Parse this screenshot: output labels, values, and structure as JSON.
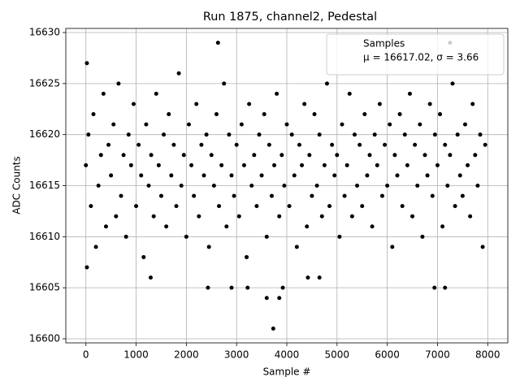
{
  "chart_data": {
    "type": "scatter",
    "title": "Run 1875, channel2, Pedestal",
    "x_label": "Sample #",
    "y_label": "ADC Counts",
    "xlim": [
      -400,
      8400
    ],
    "xticks": [
      0,
      1000,
      2000,
      3000,
      4000,
      5000,
      6000,
      7000,
      8000
    ],
    "ylim": [
      16599.6,
      16630.4
    ],
    "yticks": [
      16600,
      16605,
      16610,
      16615,
      16620,
      16625,
      16630
    ],
    "grid": true,
    "legend": "upper right",
    "legend_entries": [
      "Samples",
      "μ = 16617.02, σ = 3.66"
    ],
    "series": [
      {
        "name": "Samples",
        "color": "#000000",
        "x": [
          0,
          50,
          100,
          150,
          200,
          250,
          300,
          350,
          400,
          450,
          500,
          550,
          600,
          650,
          700,
          750,
          800,
          850,
          900,
          950,
          1000,
          1050,
          1100,
          1150,
          1200,
          1250,
          1300,
          1350,
          1400,
          1450,
          1500,
          1550,
          1600,
          1650,
          1700,
          1750,
          1800,
          1850,
          1900,
          1950,
          2000,
          2050,
          2100,
          2150,
          2200,
          2250,
          2300,
          2350,
          2400,
          2450,
          2500,
          2550,
          2600,
          2650,
          2700,
          2750,
          2800,
          2850,
          2900,
          2950,
          3000,
          3050,
          3100,
          3150,
          3200,
          3250,
          3300,
          3350,
          3400,
          3450,
          3500,
          3550,
          3600,
          3650,
          3700,
          3750,
          3800,
          3850,
          3900,
          3950,
          4000,
          4050,
          4100,
          4150,
          4200,
          4250,
          4300,
          4350,
          4400,
          4450,
          4500,
          4550,
          4600,
          4650,
          4700,
          4750,
          4800,
          4850,
          4900,
          4950,
          5000,
          5050,
          5100,
          5150,
          5200,
          5250,
          5300,
          5350,
          5400,
          5450,
          5500,
          5550,
          5600,
          5650,
          5700,
          5750,
          5800,
          5850,
          5900,
          5950,
          6000,
          6050,
          6100,
          6150,
          6200,
          6250,
          6300,
          6350,
          6400,
          6450,
          6500,
          6550,
          6600,
          6650,
          6700,
          6750,
          6800,
          6850,
          6900,
          6950,
          7000,
          7050,
          7100,
          7150,
          7200,
          7250,
          7300,
          7350,
          7400,
          7450,
          7500,
          7550,
          7600,
          7650,
          7700,
          7750,
          7800,
          7850,
          7900,
          7950,
          3730,
          3600,
          3850,
          3920,
          2630,
          7250,
          1290,
          2430,
          2900,
          3220,
          6940,
          7150,
          4420,
          4650,
          20,
          20
        ],
        "values": [
          16617,
          16620,
          16613,
          16622,
          16609,
          16615,
          16618,
          16624,
          16611,
          16619,
          16616,
          16621,
          16612,
          16625,
          16614,
          16618,
          16610,
          16620,
          16617,
          16623,
          16613,
          16619,
          16616,
          16608,
          16621,
          16615,
          16618,
          16612,
          16624,
          16617,
          16614,
          16620,
          16611,
          16622,
          16616,
          16619,
          16613,
          16626,
          16615,
          16618,
          16610,
          16621,
          16617,
          16614,
          16623,
          16612,
          16619,
          16616,
          16620,
          16609,
          16618,
          16615,
          16622,
          16613,
          16617,
          16625,
          16611,
          16620,
          16616,
          16614,
          16619,
          16612,
          16621,
          16617,
          16608,
          16623,
          16615,
          16618,
          16613,
          16620,
          16616,
          16622,
          16610,
          16619,
          16614,
          16617,
          16624,
          16612,
          16618,
          16615,
          16621,
          16613,
          16620,
          16616,
          16609,
          16619,
          16617,
          16623,
          16611,
          16618,
          16614,
          16622,
          16615,
          16620,
          16612,
          16617,
          16625,
          16613,
          16619,
          16616,
          16618,
          16610,
          16621,
          16614,
          16617,
          16624,
          16612,
          16620,
          16615,
          16619,
          16613,
          16622,
          16616,
          16618,
          16611,
          16620,
          16617,
          16623,
          16614,
          16619,
          16615,
          16621,
          16609,
          16618,
          16616,
          16622,
          16613,
          16620,
          16617,
          16624,
          16612,
          16619,
          16615,
          16621,
          16610,
          16618,
          16616,
          16623,
          16614,
          16620,
          16617,
          16622,
          16611,
          16619,
          16615,
          16618,
          16625,
          16613,
          16620,
          16616,
          16614,
          16621,
          16617,
          16612,
          16623,
          16618,
          16615,
          16620,
          16609,
          16619,
          16601,
          16604,
          16604,
          16605,
          16629,
          16629,
          16606,
          16605,
          16605,
          16605,
          16605,
          16605,
          16606,
          16606,
          16627,
          16607
        ]
      }
    ]
  }
}
